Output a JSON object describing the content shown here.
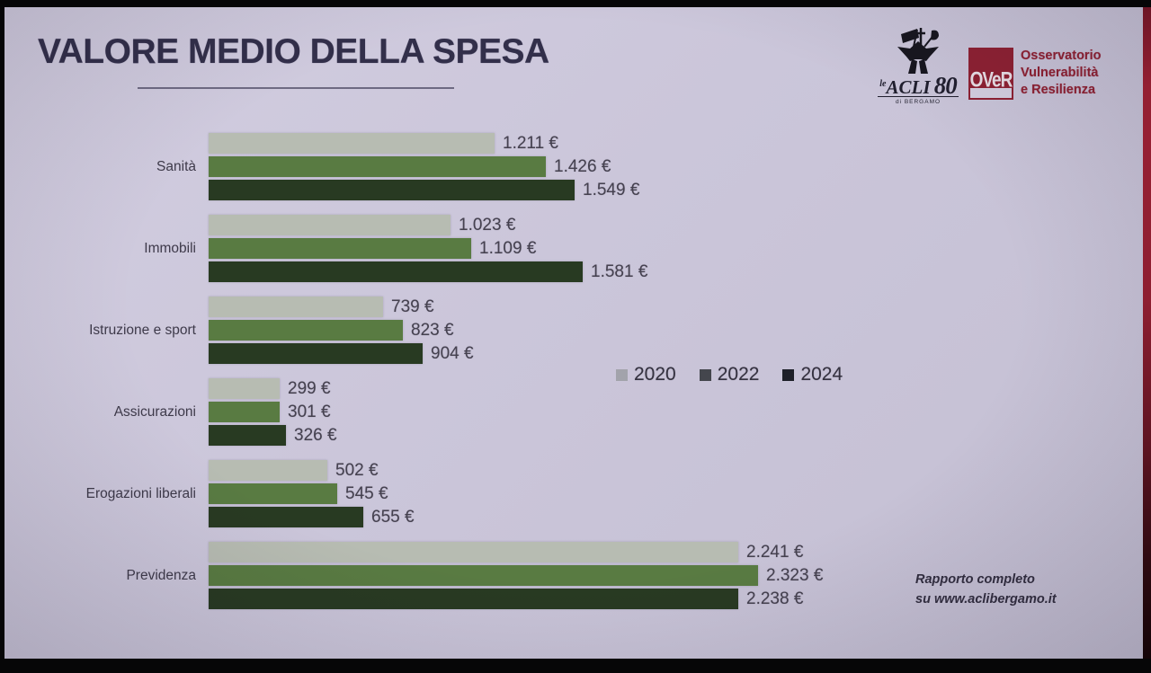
{
  "slide": {
    "title": "VALORE MEDIO DELLA SPESA",
    "footnote_line1": "Rapporto completo",
    "footnote_line2": "su www.aclibergamo.it"
  },
  "logos": {
    "acli": {
      "prefix": "le",
      "name": "ACLI",
      "anniversary": "80",
      "subtext": "di BERGAMO"
    },
    "over": {
      "acronym": "OVeR",
      "line1": "Osservatorio",
      "line2": "Vulnerabilità",
      "line3": "e Resilienza",
      "brand_color": "#8e2133"
    }
  },
  "chart_data": {
    "type": "bar",
    "orientation": "horizontal",
    "title": "VALORE MEDIO DELLA SPESA",
    "unit": "€",
    "grid": false,
    "legend_position": "middle-right",
    "xlim": [
      0,
      2400
    ],
    "categories": [
      "Sanità",
      "Immobili",
      "Istruzione e sport",
      "Assicurazioni",
      "Erogazioni liberali",
      "Previdenza"
    ],
    "series": [
      {
        "name": "2020",
        "color": "#b7bcb2",
        "legend_color": "#a2a3ab",
        "values": [
          1211,
          1023,
          739,
          299,
          502,
          2241
        ],
        "labels": [
          "1.211 €",
          "1.023 €",
          "739 €",
          "299 €",
          "502 €",
          "2.241 €"
        ]
      },
      {
        "name": "2022",
        "color": "#597b42",
        "legend_color": "#44464d",
        "values": [
          1426,
          1109,
          823,
          301,
          545,
          2323
        ],
        "labels": [
          "1.426 €",
          "1.109 €",
          "823 €",
          "301 €",
          "545 €",
          "2.323 €"
        ]
      },
      {
        "name": "2024",
        "color": "#283a22",
        "legend_color": "#1e2029",
        "values": [
          1549,
          1581,
          904,
          326,
          655,
          2238
        ],
        "labels": [
          "1.549 €",
          "1.581 €",
          "904 €",
          "326 €",
          "655 €",
          "2.238 €"
        ]
      }
    ]
  }
}
